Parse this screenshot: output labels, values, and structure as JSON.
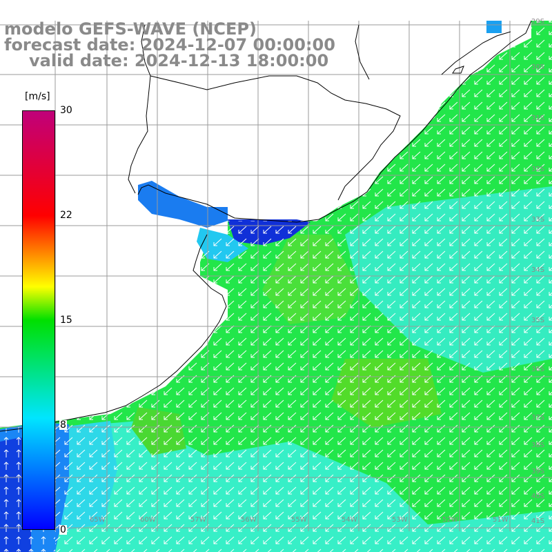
{
  "title": {
    "line1": "modelo GEFS-WAVE (NCEP)",
    "line2": "forecast date: 2024-12-07 00:00:00",
    "line3": "valid date: 2024-12-13 18:00:00"
  },
  "colorbar": {
    "unit": "[m/s]",
    "ticks": [
      "30",
      "22",
      "15",
      "8",
      "0"
    ],
    "min": 0,
    "max": 30,
    "tick_values": [
      30,
      22,
      15,
      8,
      0
    ],
    "colors": [
      "#0000ff",
      "#00e5ff",
      "#00e000",
      "#ffff00",
      "#ff0000",
      "#c0007a"
    ]
  },
  "map": {
    "lon_labels": [
      "65W",
      "60W",
      "57W",
      "56W",
      "55W",
      "54W",
      "53W",
      "52W",
      "51W"
    ],
    "lat_labels": [
      "29S",
      "30S",
      "31S",
      "32S",
      "33S",
      "34S",
      "35S",
      "36S",
      "37S",
      "38S",
      "39S",
      "40S",
      "41S"
    ],
    "ocean_color": "#22e64a",
    "land_color": "#ffffff"
  }
}
